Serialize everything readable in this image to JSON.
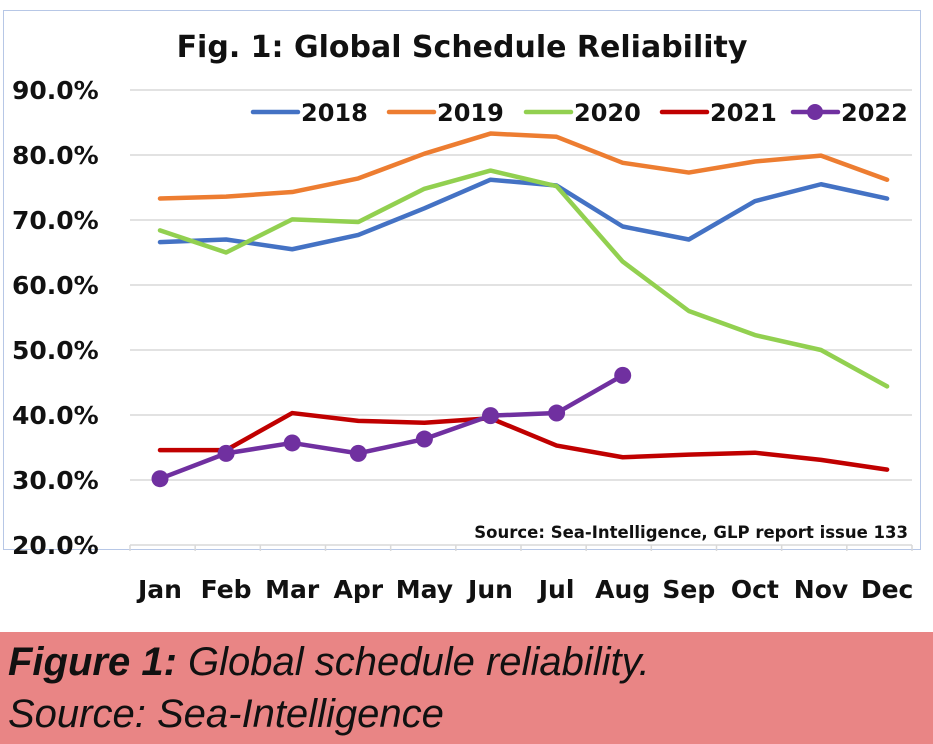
{
  "chart_data": {
    "type": "line",
    "title": "Fig. 1: Global Schedule Reliability",
    "categories": [
      "Jan",
      "Feb",
      "Mar",
      "Apr",
      "May",
      "Jun",
      "Jul",
      "Aug",
      "Sep",
      "Oct",
      "Nov",
      "Dec"
    ],
    "ylim": [
      20,
      90
    ],
    "yticks": [
      "20.0%",
      "30.0%",
      "40.0%",
      "50.0%",
      "60.0%",
      "70.0%",
      "80.0%",
      "90.0%"
    ],
    "grid": true,
    "legend_position": "top",
    "source_note": "Source: Sea-Intelligence, GLP report issue 133",
    "series": [
      {
        "name": "2018",
        "color": "#4472c4",
        "markers": false,
        "values": [
          66.6,
          67.0,
          65.5,
          67.7,
          71.8,
          76.2,
          75.3,
          69.0,
          67.0,
          72.9,
          75.5,
          73.3
        ]
      },
      {
        "name": "2019",
        "color": "#ed7d31",
        "markers": false,
        "values": [
          73.3,
          73.6,
          74.3,
          76.4,
          80.2,
          83.3,
          82.8,
          78.8,
          77.3,
          79.0,
          79.9,
          76.2
        ]
      },
      {
        "name": "2020",
        "color": "#92d050",
        "markers": false,
        "values": [
          68.4,
          65.0,
          70.1,
          69.7,
          74.8,
          77.6,
          75.2,
          63.6,
          56.0,
          52.3,
          50.0,
          44.4
        ]
      },
      {
        "name": "2021",
        "color": "#c00000",
        "markers": false,
        "values": [
          34.6,
          34.6,
          40.3,
          39.1,
          38.8,
          39.5,
          35.3,
          33.5,
          33.9,
          34.2,
          33.1,
          31.6
        ]
      },
      {
        "name": "2022",
        "color": "#7030a0",
        "markers": true,
        "values": [
          30.2,
          34.1,
          35.7,
          34.1,
          36.3,
          39.9,
          40.3,
          46.1,
          null,
          null,
          null,
          null
        ]
      }
    ]
  },
  "caption": {
    "lead": "Figure 1:",
    "rest": " Global schedule reliability.",
    "line2": "Source: Sea-Intelligence"
  }
}
